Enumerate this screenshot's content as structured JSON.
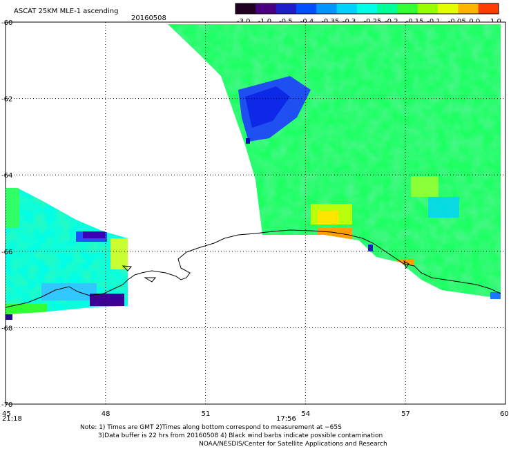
{
  "title": "ASCAT 25KM MLE-1 ascending",
  "date": "20160508",
  "colorbar": {
    "tick_labels": [
      "-3.0",
      "-1.0",
      "-0.5",
      "-0.4",
      "-0.35",
      "-0.3",
      "-0.25",
      "-0.2",
      "-0.15",
      "-0.1",
      "-0.05",
      "0.0",
      "1.0"
    ],
    "colors": [
      "#220022",
      "#4b0082",
      "#1e1ec8",
      "#0050ff",
      "#0096ff",
      "#00d2ff",
      "#00ffe6",
      "#00ff96",
      "#32ff32",
      "#96ff00",
      "#e6ff00",
      "#ffb400",
      "#ff3c00"
    ]
  },
  "chart_data": {
    "type": "heatmap",
    "x_ticks": [
      "45",
      "48",
      "51",
      "54",
      "57",
      "60"
    ],
    "y_ticks": [
      "-60",
      "-62",
      "-64",
      "-66",
      "-68",
      "-70"
    ],
    "x_range": [
      45,
      60
    ],
    "y_range": [
      -70,
      -60
    ],
    "grid": true
  },
  "time_labels": {
    "left": "21:18",
    "middle": "17:56",
    "color": "#cc2200"
  },
  "notes": {
    "line1": "Note: 1) Times are GMT 2)Times along bottom correspond to measurement at −65S",
    "line2": "3)Data buffer is 22 hrs from 20160508 4) Black wind barbs indicate possible contamination",
    "line3": "NOAA/NESDIS/Center for Satellite Applications and Research"
  }
}
